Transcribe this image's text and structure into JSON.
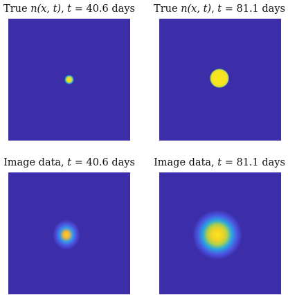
{
  "panels": [
    {
      "title_prefix": "True ",
      "title_var": "n(x, t)",
      "title_mid": ", ",
      "title_t": "t",
      "title_suffix": " = 40.6 days",
      "kind": "true-solution"
    },
    {
      "title_prefix": "True ",
      "title_var": "n(x, t)",
      "title_mid": ", ",
      "title_t": "t",
      "title_suffix": " = 81.1 days",
      "kind": "true-solution"
    },
    {
      "title_prefix": "Image data, ",
      "title_var": "",
      "title_mid": "",
      "title_t": "t",
      "title_suffix": " = 40.6 days",
      "kind": "image-data"
    },
    {
      "title_prefix": "Image data, ",
      "title_var": "",
      "title_mid": "",
      "title_t": "t",
      "title_suffix": " = 81.1 days",
      "kind": "image-data"
    }
  ],
  "colors": {
    "background": "#3c2ea8",
    "low": "#4a3cc8",
    "mid": "#2aa7e0",
    "high": "#f9e61e",
    "peak": "#f6d224"
  }
}
